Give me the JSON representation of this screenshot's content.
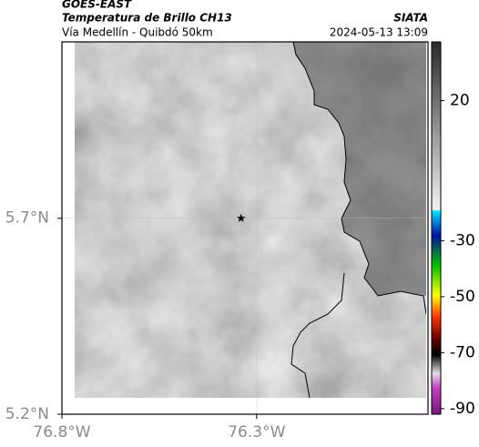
{
  "header": {
    "title": "GOES-EAST",
    "subtitle": "Temperatura de Brillo CH13",
    "route": "Vía Medellín - Quibdó 50km",
    "source": "SIATA",
    "timestamp": "2024-05-13 13:09"
  },
  "map": {
    "xlim": [
      -76.8,
      -75.86
    ],
    "ylim": [
      5.2,
      6.15
    ],
    "xticks": [
      {
        "value": -76.8,
        "label": "76.8°W"
      },
      {
        "value": -76.3,
        "label": "76.3°W"
      }
    ],
    "yticks": [
      {
        "value": 5.2,
        "label": "5.2°N"
      },
      {
        "value": 5.7,
        "label": "5.7°N"
      }
    ],
    "marker": {
      "lon": -76.34,
      "lat": 5.7
    }
  },
  "colorbar": {
    "clim": [
      -92,
      41
    ],
    "ticks": [
      20,
      -30,
      -50,
      -70,
      -90
    ]
  }
}
